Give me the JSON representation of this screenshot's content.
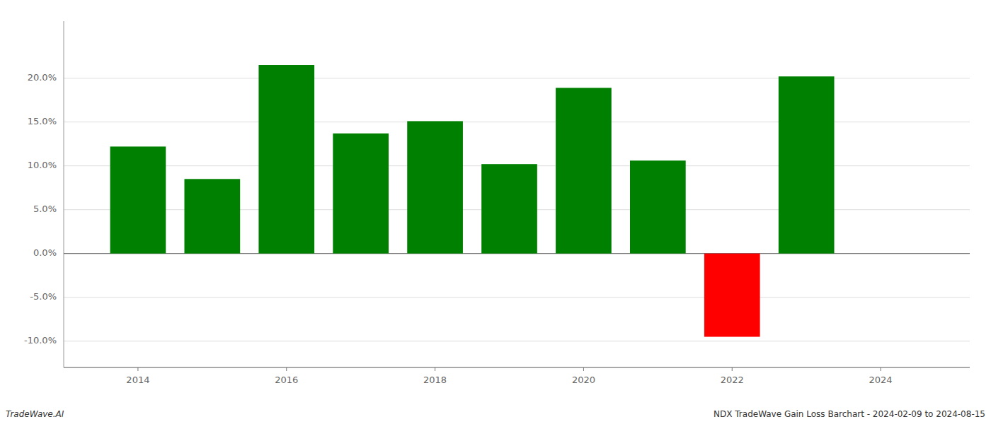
{
  "chart_data": {
    "type": "bar",
    "x": [
      2014,
      2015,
      2016,
      2017,
      2018,
      2019,
      2020,
      2021,
      2022,
      2023
    ],
    "values": [
      0.122,
      0.085,
      0.215,
      0.137,
      0.151,
      0.102,
      0.189,
      0.106,
      -0.095,
      0.202
    ],
    "colors": [
      "#008000",
      "#008000",
      "#008000",
      "#008000",
      "#008000",
      "#008000",
      "#008000",
      "#008000",
      "#ff0000",
      "#008000"
    ],
    "xlim": [
      2013.0,
      2025.2
    ],
    "xticks": [
      2014,
      2016,
      2018,
      2020,
      2022,
      2024
    ],
    "ylim": [
      -0.13,
      0.265
    ],
    "yticks": [
      {
        "value": -0.1,
        "label": "-10.0%"
      },
      {
        "value": -0.05,
        "label": "-5.0%"
      },
      {
        "value": 0.0,
        "label": "0.0%"
      },
      {
        "value": 0.05,
        "label": "5.0%"
      },
      {
        "value": 0.1,
        "label": "10.0%"
      },
      {
        "value": 0.15,
        "label": "15.0%"
      },
      {
        "value": 0.2,
        "label": "20.0%"
      }
    ],
    "grid": true,
    "annotations": [
      "TradeWave.AI",
      "NDX TradeWave Gain Loss Barchart - 2024-02-09 to 2024-08-15"
    ]
  }
}
